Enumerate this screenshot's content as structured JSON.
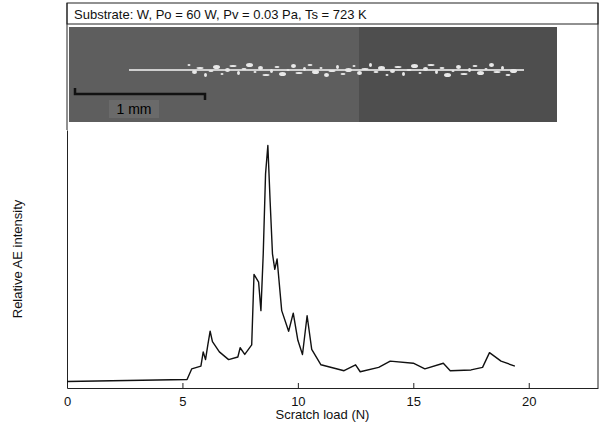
{
  "chart_data": {
    "type": "line",
    "title": "Substrate: W, Po = 60 W, Pv = 0.03 Pa, Ts = 723 K",
    "annotation": "1 mm",
    "x_label": "Scratch load (N)",
    "y_label": "Relative AE intensity",
    "x": [
      0,
      5.2,
      5.4,
      5.8,
      5.9,
      6.0,
      6.1,
      6.2,
      6.3,
      6.6,
      7.0,
      7.4,
      7.5,
      7.7,
      8.0,
      8.1,
      8.3,
      8.4,
      8.5,
      8.6,
      8.7,
      8.8,
      8.9,
      9.0,
      9.1,
      9.3,
      9.6,
      9.8,
      10.0,
      10.2,
      10.4,
      10.6,
      11.0,
      12.0,
      12.5,
      12.7,
      13.5,
      14.0,
      15.0,
      15.5,
      16.3,
      16.6,
      17.5,
      18.0,
      18.3,
      18.8,
      19.4
    ],
    "values": [
      2.5,
      3.3,
      7.4,
      8.5,
      14,
      11,
      16.7,
      22,
      18,
      14,
      11,
      12,
      15.6,
      13,
      16.7,
      44,
      41,
      30,
      52,
      83,
      94,
      72,
      52,
      46,
      50,
      30,
      22,
      29,
      18.5,
      13,
      28,
      15,
      9,
      6.7,
      9,
      6.3,
      8,
      10.4,
      9.6,
      7.4,
      9.6,
      6.7,
      7,
      8,
      13.7,
      10.4,
      8.5
    ],
    "color": "#111111",
    "xlim": [
      0,
      23
    ],
    "xticks": [
      0,
      5,
      10,
      15,
      20
    ],
    "ylim": [
      0,
      100
    ],
    "tick_labels": "x",
    "grid": false
  }
}
